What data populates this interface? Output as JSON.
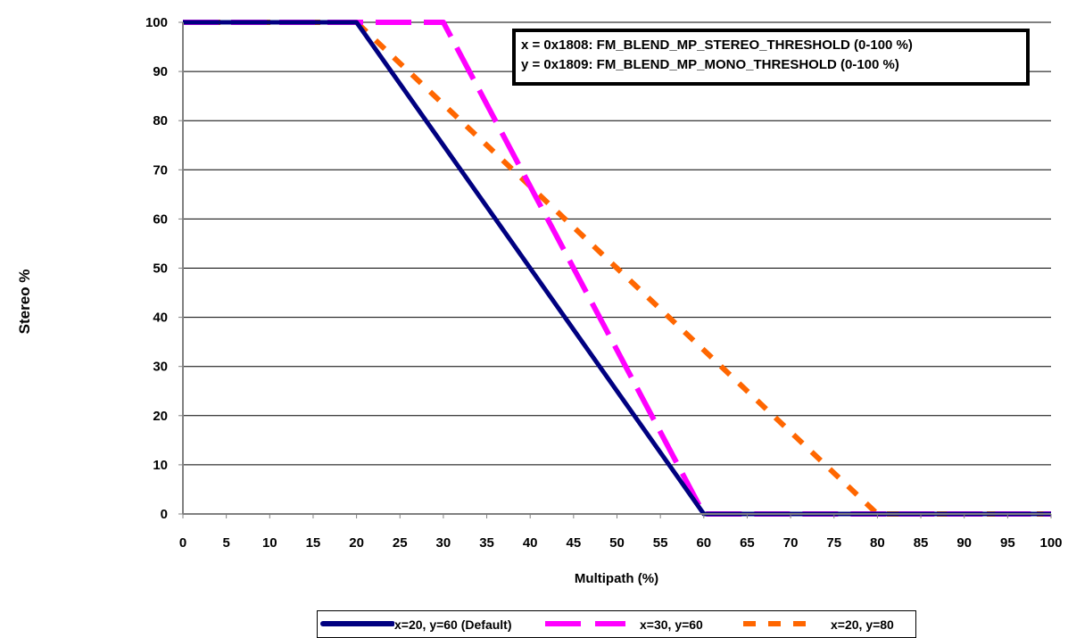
{
  "chart_data": {
    "type": "line",
    "title": "",
    "xlabel": "Multipath (%)",
    "ylabel": "Stereo %",
    "xlim": [
      0,
      100
    ],
    "ylim": [
      0,
      100
    ],
    "xticks": [
      0,
      5,
      10,
      15,
      20,
      25,
      30,
      35,
      40,
      45,
      50,
      55,
      60,
      65,
      70,
      75,
      80,
      85,
      90,
      95,
      100
    ],
    "yticks": [
      0,
      10,
      20,
      30,
      40,
      50,
      60,
      70,
      80,
      90,
      100
    ],
    "grid": "horizontal",
    "legend_position": "bottom",
    "annotation": [
      "x = 0x1808: FM_BLEND_MP_STEREO_THRESHOLD (0-100 %)",
      "y = 0x1809: FM_BLEND_MP_MONO_THRESHOLD (0-100 %)"
    ],
    "series": [
      {
        "name": "x=20, y=60 (Default)",
        "color": "#000080",
        "style": "solid",
        "points": [
          [
            0,
            100
          ],
          [
            20,
            100
          ],
          [
            60,
            0
          ],
          [
            100,
            0
          ]
        ]
      },
      {
        "name": "x=30, y=60",
        "color": "#FF00FF",
        "style": "dashed",
        "points": [
          [
            0,
            100
          ],
          [
            30,
            100
          ],
          [
            60,
            0
          ],
          [
            100,
            0
          ]
        ]
      },
      {
        "name": "x=20, y=80",
        "color": "#FF6600",
        "style": "dashed",
        "points": [
          [
            0,
            100
          ],
          [
            20,
            100
          ],
          [
            80,
            0
          ],
          [
            100,
            0
          ]
        ]
      }
    ]
  }
}
